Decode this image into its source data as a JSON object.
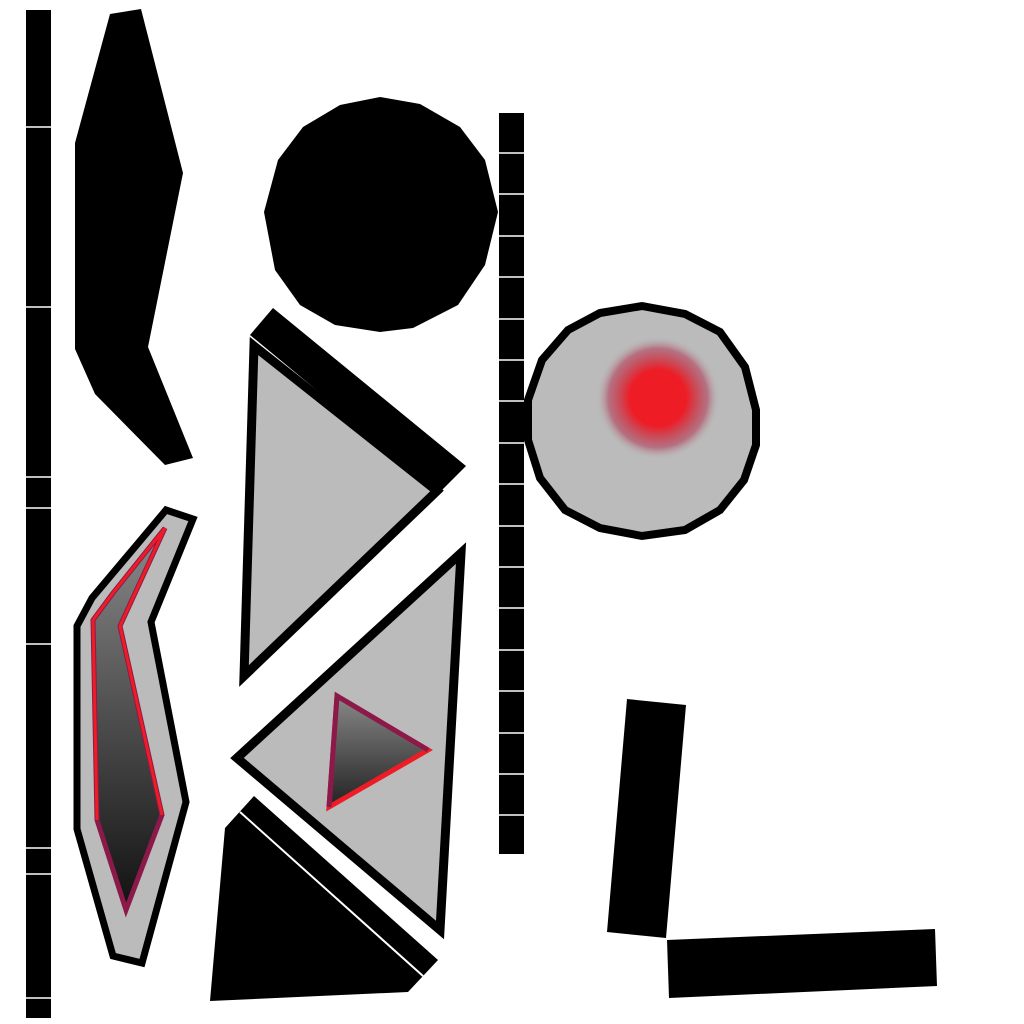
{
  "colors": {
    "background": "#ffffff",
    "black": "#000000",
    "gray_fill": "#bbbbbb",
    "accent_red": "#ee1c24",
    "accent_magenta": "#8b1a4a",
    "dark_gradient_top": "#8a8a8a",
    "dark_gradient_bottom": "#111111"
  },
  "shapes": [
    {
      "name": "left-segmented-bar",
      "kind": "segmented-bar",
      "segments": 9
    },
    {
      "name": "middle-segmented-bar",
      "kind": "segmented-bar",
      "segments": 18
    },
    {
      "name": "black-chevron-shape",
      "kind": "polygon",
      "fill": "black"
    },
    {
      "name": "gradient-chevron-shape",
      "kind": "polygon",
      "fill": "gradient"
    },
    {
      "name": "black-circle",
      "kind": "circle",
      "fill": "black"
    },
    {
      "name": "gray-circle-with-red-glow",
      "kind": "circle",
      "fill": "gray"
    },
    {
      "name": "right-pointing-triangle",
      "kind": "triangle",
      "fill": "gray"
    },
    {
      "name": "left-pointing-triangle",
      "kind": "triangle",
      "fill": "gray"
    },
    {
      "name": "small-gradient-triangle",
      "kind": "triangle",
      "fill": "gradient"
    },
    {
      "name": "black-bottom-wedge",
      "kind": "polygon",
      "fill": "black"
    },
    {
      "name": "vertical-black-bar",
      "kind": "rectangle",
      "fill": "black"
    },
    {
      "name": "horizontal-black-bar",
      "kind": "rectangle",
      "fill": "black"
    }
  ]
}
